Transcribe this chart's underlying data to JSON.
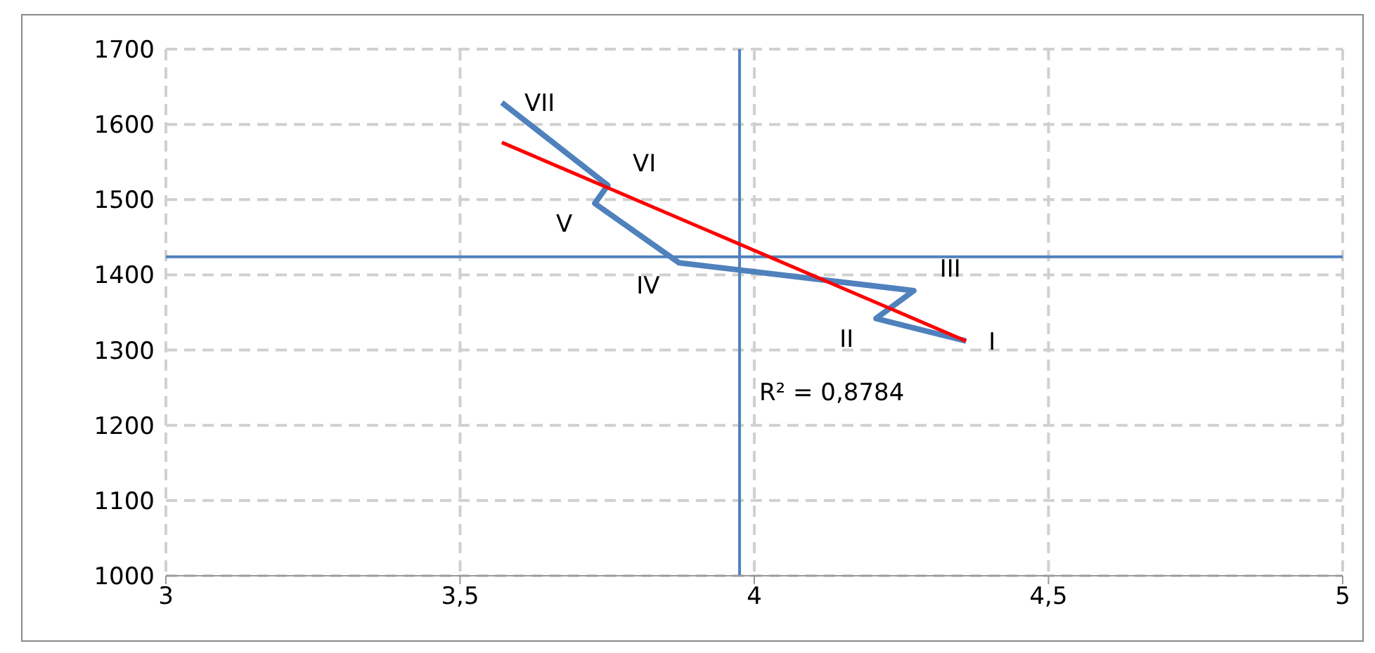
{
  "chart_data": {
    "type": "line",
    "x": [
      4.36,
      4.207,
      4.271,
      3.872,
      3.729,
      3.751,
      3.571
    ],
    "series": [
      {
        "color": "#4f81bd",
        "values": [
          1312,
          1342,
          1379,
          1416,
          1495,
          1519,
          1629
        ]
      },
      {
        "color": "#ff0000",
        "x": [
          3.571,
          4.36
        ],
        "values": [
          1576,
          1312
        ]
      }
    ],
    "xlim": [
      3,
      5
    ],
    "xticks": [
      3,
      {
        "value": 3.5,
        "label": "3,5"
      },
      4,
      {
        "value": 4.5,
        "label": "4,5"
      },
      5
    ],
    "ylim": [
      1000,
      1700
    ],
    "yticks": [
      1000,
      1100,
      1200,
      1300,
      1400,
      1500,
      1600,
      1700
    ],
    "grid": true,
    "marker": "none",
    "ref_lines": [
      {
        "axis": "x",
        "value": 3.975,
        "color": "#4f81bd"
      },
      {
        "axis": "y",
        "value": 1424,
        "color": "#4f81bd"
      }
    ],
    "annotations": [
      {
        "text": "I",
        "x": 4.36,
        "y": 1312
      },
      {
        "text": "II",
        "x": 4.207,
        "y": 1342
      },
      {
        "text": "III",
        "x": 4.271,
        "y": 1379
      },
      {
        "text": "IV",
        "x": 3.872,
        "y": 1416
      },
      {
        "text": "V",
        "x": 3.729,
        "y": 1495
      },
      {
        "text": "VI",
        "x": 3.751,
        "y": 1519
      },
      {
        "text": "VII",
        "x": 3.571,
        "y": 1629
      },
      "R² = 0,8784"
    ]
  }
}
